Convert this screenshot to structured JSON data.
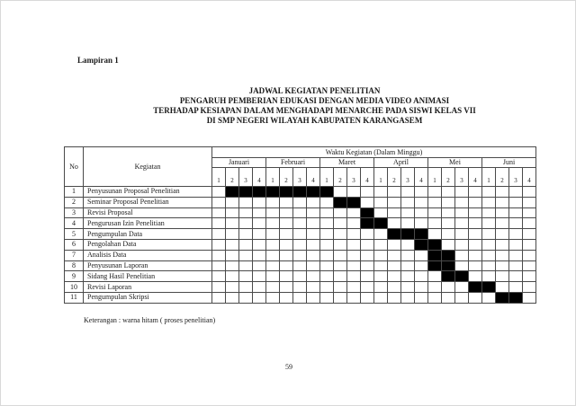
{
  "page": {
    "lampiran": "Lampiran 1",
    "caption": "Keterangan : warna hitam ( proses penelitian)",
    "page_number": "59"
  },
  "title": {
    "line1": "JADWAL KEGIATAN PENELITIAN",
    "line2": "PENGARUH PEMBERIAN EDUKASI DENGAN MEDIA VIDEO ANIMASI",
    "line3": "TERHADAP KESIAPAN DALAM MENGHADAPI MENARCHE PADA SISWI KELAS VII",
    "line4": "DI SMP NEGERI WILAYAH KABUPATEN KARANGASEM"
  },
  "table": {
    "header": {
      "no": "No",
      "kegiatan": "Kegiatan",
      "waktu": "Waktu Kegiatan (Dalam Minggu)",
      "months": [
        "Januari",
        "Februari",
        "Maret",
        "April",
        "Mei",
        "Juni"
      ],
      "weeks_per_month": [
        "1",
        "2",
        "3",
        "4"
      ]
    },
    "rows": [
      {
        "no": "1",
        "kegiatan": "Penyusunan Proposal Penelitian",
        "filled_weeks": [
          2,
          3,
          4,
          5,
          6,
          7,
          8,
          9
        ]
      },
      {
        "no": "2",
        "kegiatan": "Seminar Proposal Penelitian",
        "filled_weeks": [
          10,
          11
        ]
      },
      {
        "no": "3",
        "kegiatan": "Revisi Proposal",
        "filled_weeks": [
          12
        ]
      },
      {
        "no": "4",
        "kegiatan": "Pengurusan Izin Penelitian",
        "filled_weeks": [
          12,
          13
        ]
      },
      {
        "no": "5",
        "kegiatan": "Pengumpulan Data",
        "filled_weeks": [
          14,
          15,
          16
        ]
      },
      {
        "no": "6",
        "kegiatan": "Pengolahan Data",
        "filled_weeks": [
          16,
          17
        ]
      },
      {
        "no": "7",
        "kegiatan": "Analisis Data",
        "filled_weeks": [
          17,
          18
        ]
      },
      {
        "no": "8",
        "kegiatan": "Penyusunan Laporan",
        "filled_weeks": [
          17,
          18
        ]
      },
      {
        "no": "9",
        "kegiatan": "Sidang Hasil Penelitian",
        "filled_weeks": [
          18,
          19
        ]
      },
      {
        "no": "10",
        "kegiatan": "Revisi Laporan",
        "filled_weeks": [
          20,
          21
        ]
      },
      {
        "no": "11",
        "kegiatan": "Pengumpulan Skripsi",
        "filled_weeks": [
          22,
          23
        ]
      }
    ]
  },
  "colors": {
    "bar_fill": "#000000",
    "grid_border": "#4a4a4a",
    "text": "#1a1a1a"
  }
}
